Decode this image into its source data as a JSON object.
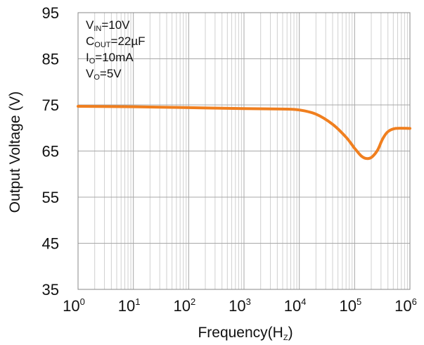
{
  "chart_data": {
    "type": "line",
    "xlabel": {
      "main": "Frequency(H",
      "sub": "Z",
      "close": ")"
    },
    "ylabel": "Output Voltage (V)",
    "x_scale": "log",
    "xlim": [
      1,
      1000000
    ],
    "ylim": [
      35,
      95
    ],
    "x_ticks": [
      {
        "value": 1,
        "base": "10",
        "exp": "0"
      },
      {
        "value": 10,
        "base": "10",
        "exp": "1"
      },
      {
        "value": 100,
        "base": "10",
        "exp": "2"
      },
      {
        "value": 1000,
        "base": "10",
        "exp": "3"
      },
      {
        "value": 10000,
        "base": "10",
        "exp": "4"
      },
      {
        "value": 100000,
        "base": "10",
        "exp": "5"
      },
      {
        "value": 1000000,
        "base": "10",
        "exp": "6"
      }
    ],
    "y_ticks": [
      "35",
      "45",
      "55",
      "65",
      "75",
      "85",
      "95"
    ],
    "grid": true,
    "conditions": [
      {
        "main": "V",
        "sub": "IN",
        "rest": "=10V"
      },
      {
        "main": "C",
        "sub": "OUT",
        "rest": "=22µF"
      },
      {
        "main": "I",
        "sub": "O",
        "rest": "=10mA"
      },
      {
        "main": "V",
        "sub": "O",
        "rest": "=5V"
      }
    ],
    "line_color": "#f07f1f",
    "series": [
      {
        "x": [
          1,
          10,
          100,
          1000,
          5000,
          10000,
          20000,
          40000,
          70000,
          100000,
          130000,
          160000,
          200000,
          260000,
          320000,
          400000,
          550000,
          1000000
        ],
        "values": [
          74.7,
          74.6,
          74.4,
          74.2,
          74.1,
          73.9,
          73.0,
          70.8,
          68.0,
          65.6,
          64.0,
          63.4,
          63.6,
          65.2,
          67.6,
          69.2,
          69.9,
          69.9
        ]
      }
    ]
  }
}
